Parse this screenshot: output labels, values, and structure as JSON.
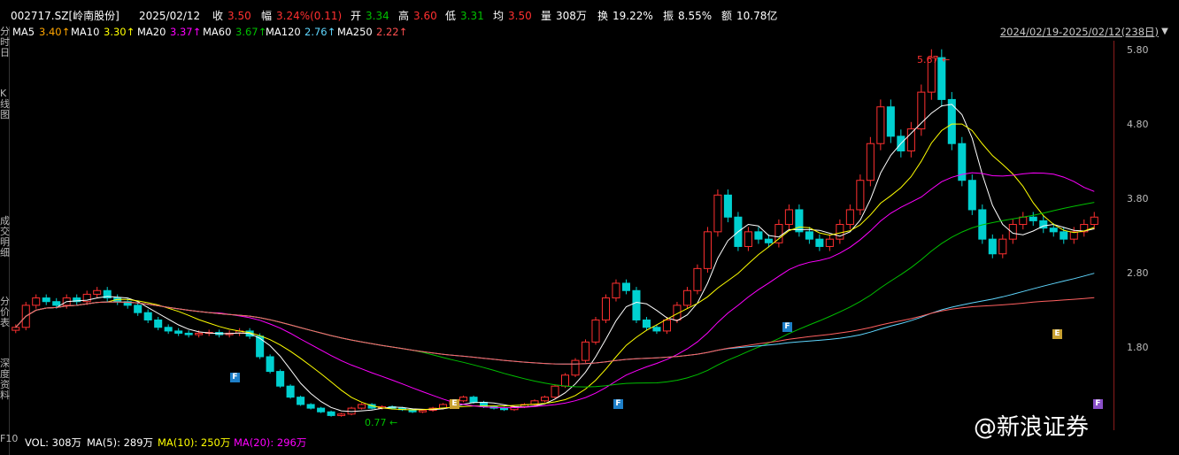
{
  "quote": {
    "code": "002717.SZ[岭南股份]",
    "date": "2025/02/12",
    "close_label": "收",
    "close": "3.50",
    "range_label": "幅",
    "range": "3.24%(0.11)",
    "open_label": "开",
    "open": "3.34",
    "high_label": "高",
    "high": "3.60",
    "low_label": "低",
    "low": "3.31",
    "avg_label": "均",
    "avg": "3.50",
    "vol_label": "量",
    "vol": "308万",
    "turnover_label": "换",
    "turnover": "19.22%",
    "amplitude_label": "振",
    "amplitude": "8.55%",
    "amount_label": "额",
    "amount": "10.78亿"
  },
  "ma": [
    {
      "label": "MA5",
      "value": "3.40↑",
      "color": "#ffffff",
      "vcolor": "#ffa500"
    },
    {
      "label": "MA10",
      "value": "3.30↑",
      "color": "#ffffff",
      "vcolor": "#ffff00"
    },
    {
      "label": "MA20",
      "value": "3.37↑",
      "color": "#ffffff",
      "vcolor": "#ff00ff"
    },
    {
      "label": "MA60",
      "value": "3.67↑",
      "color": "#ffffff",
      "vcolor": "#00c000"
    },
    {
      "label": "MA120",
      "value": "2.76↑",
      "color": "#ffffff",
      "vcolor": "#5fd7ff"
    },
    {
      "label": "MA250",
      "value": "2.22↑",
      "color": "#ffffff",
      "vcolor": "#ff5050"
    }
  ],
  "date_range": "2024/02/19-2025/02/12(238日)",
  "y_axis": [
    "5.80",
    "4.80",
    "3.80",
    "2.80",
    "1.80"
  ],
  "sidebar_tabs": [
    "分时",
    "日",
    "K线图",
    "",
    "成交明细",
    "分价表",
    "深度资料",
    "F10"
  ],
  "annotations": {
    "high": "5.67",
    "low": "0.77"
  },
  "markers": [
    {
      "text": "F",
      "color": "#1e7fc8"
    },
    {
      "text": "E",
      "color": "#c8a030"
    },
    {
      "text": "F",
      "color": "#1e7fc8"
    },
    {
      "text": "F",
      "color": "#1e7fc8"
    },
    {
      "text": "E",
      "color": "#c8a030"
    },
    {
      "text": "F",
      "color": "#8a4fc8"
    }
  ],
  "volume": {
    "vol": "VOL: 308万",
    "ma5": "MA(5): 289万",
    "ma10": "MA(10): 250万",
    "ma20": "MA(20): 296万"
  },
  "watermark": "@新浪证券",
  "colors": {
    "up": "#ff3030",
    "down": "#00d0d0",
    "ma5": "#ffffff",
    "ma10": "#ffff00",
    "ma20": "#ff00ff",
    "ma60": "#00c000",
    "ma120": "#5fd7ff",
    "ma250": "#ff6060"
  },
  "chart_data": {
    "type": "candlestick",
    "ylim": [
      0.6,
      5.9
    ],
    "closes": [
      2.0,
      2.3,
      2.4,
      2.35,
      2.3,
      2.4,
      2.35,
      2.45,
      2.5,
      2.4,
      2.35,
      2.3,
      2.2,
      2.1,
      2.0,
      1.95,
      1.92,
      1.9,
      1.92,
      1.93,
      1.9,
      1.92,
      1.95,
      1.88,
      1.6,
      1.4,
      1.2,
      1.05,
      0.95,
      0.9,
      0.85,
      0.8,
      0.82,
      0.9,
      0.95,
      0.9,
      0.92,
      0.9,
      0.88,
      0.85,
      0.87,
      0.9,
      0.95,
      1.0,
      1.05,
      0.98,
      0.92,
      0.9,
      0.88,
      0.92,
      0.95,
      1.0,
      1.05,
      1.2,
      1.35,
      1.55,
      1.8,
      2.1,
      2.4,
      2.6,
      2.5,
      2.1,
      2.0,
      1.95,
      2.1,
      2.3,
      2.5,
      2.8,
      3.3,
      3.8,
      3.5,
      3.1,
      3.3,
      3.2,
      3.15,
      3.4,
      3.6,
      3.3,
      3.2,
      3.1,
      3.2,
      3.4,
      3.6,
      4.0,
      4.5,
      5.0,
      4.6,
      4.4,
      4.7,
      5.2,
      5.67,
      5.1,
      4.5,
      4.0,
      3.6,
      3.2,
      3.0,
      3.2,
      3.4,
      3.5,
      3.45,
      3.35,
      3.3,
      3.2,
      3.3,
      3.4,
      3.5
    ]
  }
}
